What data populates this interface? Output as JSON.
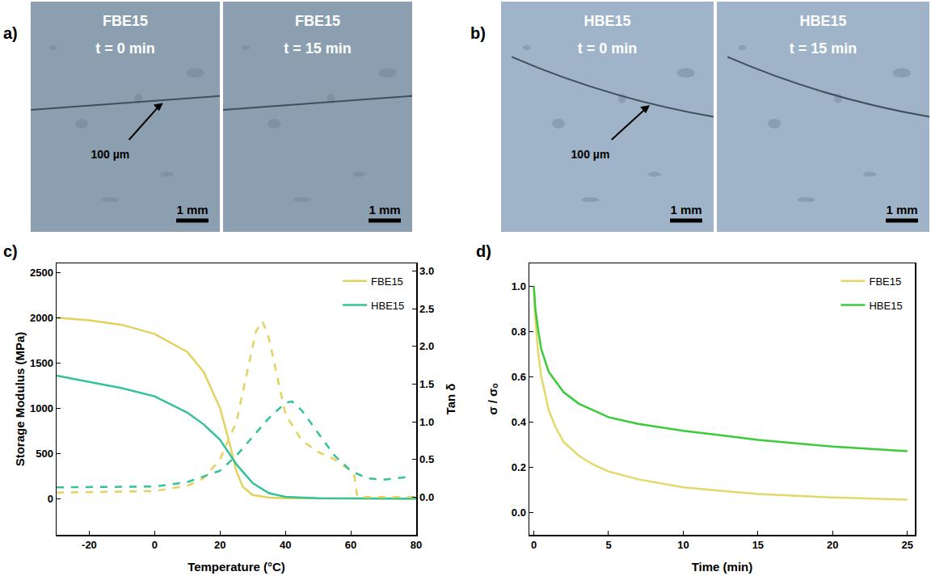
{
  "images": [
    {
      "letter": "a)",
      "frames": [
        {
          "sample": "FBE15",
          "time": "t = 0 min",
          "crack_label": "100 µm",
          "scale_bar": "1 mm"
        },
        {
          "sample": "FBE15",
          "time": "t = 15 min",
          "scale_bar": "1 mm"
        }
      ]
    },
    {
      "letter": "b)",
      "frames": [
        {
          "sample": "HBE15",
          "time": "t = 0 min",
          "crack_label": "100 µm",
          "scale_bar": "1 mm"
        },
        {
          "sample": "HBE15",
          "time": "t = 15 min",
          "scale_bar": "1 mm"
        }
      ]
    }
  ],
  "chart_data": [
    {
      "letter": "c)",
      "type": "line",
      "x_label": "Temperature (°C)",
      "y_label": "Storage Modulus (MPa)",
      "y2_label": "Tan δ",
      "xlim": [
        -30,
        80
      ],
      "xticks": [
        -20,
        0,
        20,
        40,
        60,
        80
      ],
      "ylim": [
        -400,
        2600
      ],
      "yticks": [
        0,
        500,
        1000,
        1500,
        2000,
        2500
      ],
      "y2lim": [
        -0.5,
        3.1
      ],
      "y2ticks": [
        {
          "value": 0,
          "label": "0.0"
        },
        {
          "value": 0.5,
          "label": "0.5"
        },
        {
          "value": 1,
          "label": "1.0"
        },
        {
          "value": 1.5,
          "label": "1.5"
        },
        {
          "value": 2,
          "label": "2.0"
        },
        {
          "value": 2.5,
          "label": "2.5"
        },
        {
          "value": 3,
          "label": "3.0"
        }
      ],
      "grid": false,
      "legend": "upper right",
      "series": [
        {
          "name": "FBE15",
          "color": "#e3d25f",
          "line_style": "solid",
          "x": [
            -30,
            -20,
            -10,
            0,
            10,
            15,
            20,
            23,
            25,
            27,
            30,
            35,
            40,
            80
          ],
          "values": [
            2000,
            1970,
            1920,
            1820,
            1620,
            1400,
            1000,
            600,
            300,
            130,
            40,
            10,
            5,
            0
          ]
        },
        {
          "name": "HBE15",
          "color": "#33c29a",
          "line_style": "solid",
          "x": [
            -30,
            -20,
            -10,
            0,
            10,
            15,
            20,
            25,
            30,
            35,
            40,
            50,
            80
          ],
          "values": [
            1360,
            1290,
            1220,
            1130,
            950,
            820,
            650,
            380,
            170,
            60,
            20,
            5,
            0
          ]
        },
        {
          "name": "FBE15",
          "color": "#e3d25f",
          "line_style": "dash",
          "axis": "y2",
          "x": [
            -30,
            0,
            10,
            15,
            20,
            25,
            28,
            31,
            33,
            35,
            38,
            40,
            45,
            50,
            55,
            60,
            61,
            62,
            80
          ],
          "values": [
            0.06,
            0.08,
            0.15,
            0.25,
            0.5,
            1.0,
            1.6,
            2.2,
            2.33,
            2.1,
            1.5,
            1.1,
            0.75,
            0.6,
            0.5,
            0.35,
            0.3,
            0.0,
            0.0
          ]
        },
        {
          "name": "HBE15",
          "color": "#33c29a",
          "line_style": "dash",
          "axis": "y2",
          "x": [
            -30,
            0,
            10,
            20,
            25,
            30,
            35,
            40,
            42,
            45,
            50,
            55,
            60,
            65,
            70,
            75,
            78
          ],
          "values": [
            0.13,
            0.14,
            0.2,
            0.35,
            0.55,
            0.8,
            1.05,
            1.25,
            1.27,
            1.15,
            0.85,
            0.55,
            0.35,
            0.25,
            0.23,
            0.25,
            0.27
          ]
        }
      ]
    },
    {
      "letter": "d)",
      "type": "line",
      "x_label": "Time (min)",
      "y_label": "σ / σₒ",
      "xlim": [
        -0.3,
        25.5
      ],
      "xticks": [
        0,
        5,
        10,
        15,
        20,
        25
      ],
      "ylim": [
        -0.1,
        1.1
      ],
      "yticks": [
        {
          "value": 0,
          "label": "0.0"
        },
        {
          "value": 0.2,
          "label": "0.2"
        },
        {
          "value": 0.4,
          "label": "0.4"
        },
        {
          "value": 0.6,
          "label": "0.6"
        },
        {
          "value": 0.8,
          "label": "0.8"
        },
        {
          "value": 1,
          "label": "1.0"
        }
      ],
      "grid": false,
      "legend": "upper right",
      "series": [
        {
          "name": "FBE15",
          "color": "#e5d86a",
          "line_style": "solid",
          "x": [
            0,
            0.1,
            0.3,
            0.5,
            1,
            1.5,
            2,
            3,
            4,
            5,
            7,
            10,
            12.5,
            15,
            20,
            25
          ],
          "values": [
            1.0,
            0.85,
            0.7,
            0.6,
            0.45,
            0.37,
            0.31,
            0.25,
            0.21,
            0.18,
            0.145,
            0.11,
            0.095,
            0.08,
            0.065,
            0.055
          ]
        },
        {
          "name": "HBE15",
          "color": "#3acb3a",
          "line_style": "solid",
          "x": [
            0,
            0.1,
            0.3,
            0.5,
            1,
            2,
            3,
            4,
            5,
            7,
            10,
            12.5,
            15,
            20,
            25
          ],
          "values": [
            1.0,
            0.9,
            0.8,
            0.72,
            0.62,
            0.53,
            0.48,
            0.45,
            0.42,
            0.39,
            0.36,
            0.34,
            0.32,
            0.29,
            0.27
          ]
        }
      ]
    }
  ]
}
